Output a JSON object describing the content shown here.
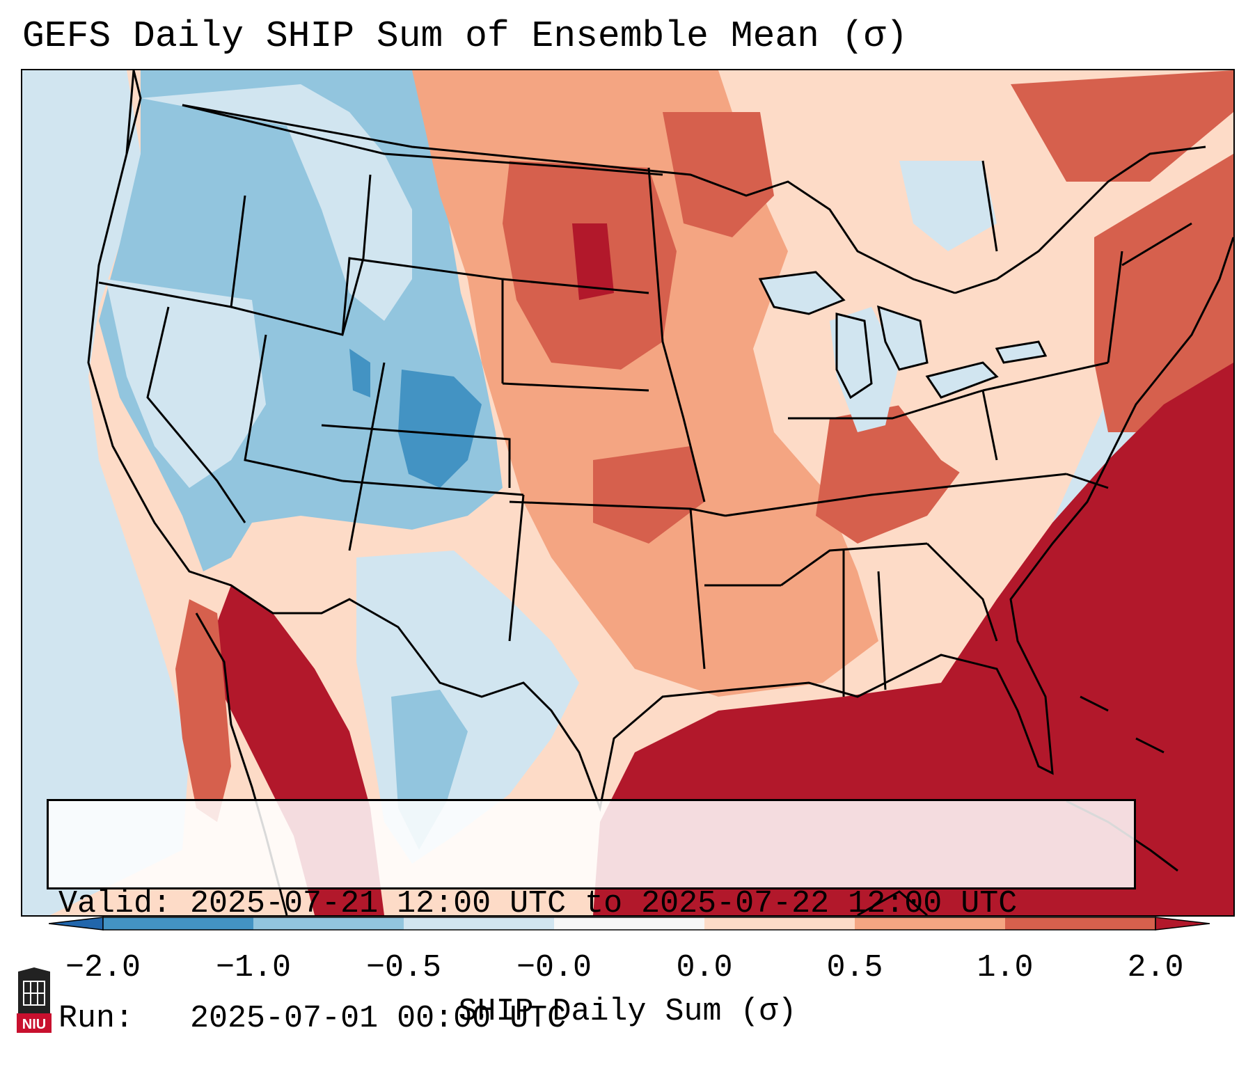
{
  "title": "GEFS Daily SHIP Sum of Ensemble Mean (σ)",
  "info": {
    "valid_line": "Valid: 2025-07-21 12:00 UTC to 2025-07-22 12:00 UTC",
    "run_line": "Run:   2025-07-01 00:00 UTC"
  },
  "colorbar": {
    "label": "SHIP Daily Sum (σ)",
    "tick_labels": [
      "−2.0",
      "−1.0",
      "−0.5",
      "−0.0",
      "0.0",
      "0.5",
      "1.0",
      "2.0"
    ],
    "colors": [
      "#2166ac",
      "#4393c3",
      "#92c5de",
      "#d1e5f0",
      "#fddbc7",
      "#f4a582",
      "#d6604d",
      "#b2182b"
    ],
    "neutral_color": "#f7f7f7"
  },
  "map": {
    "region": "Contiguous United States",
    "ocean_color": "#d1e5f0",
    "border_color": "#000000"
  },
  "logo": {
    "text": "NIU"
  }
}
